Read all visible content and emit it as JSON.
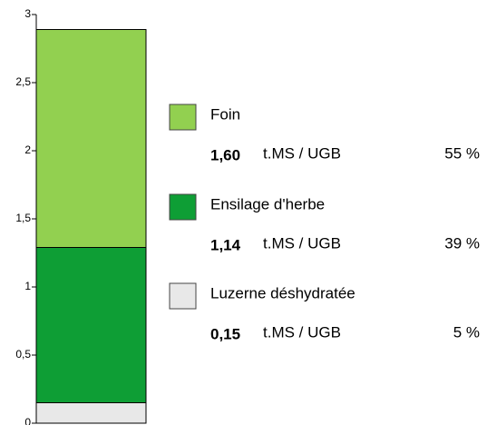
{
  "chart_data": {
    "type": "stacked_bar",
    "categories": [
      null
    ],
    "unit": "t.MS / UGB",
    "series": [
      {
        "name": "Foin",
        "color": "#92d050",
        "values": [
          1.6
        ],
        "value_labels": [
          "1,60"
        ],
        "share": [
          55
        ],
        "share_labels": [
          "55 %"
        ]
      },
      {
        "name": "Ensilage d'herbe",
        "color": "#0e9e35",
        "values": [
          1.14
        ],
        "value_labels": [
          "1,14"
        ],
        "share": [
          39
        ],
        "share_labels": [
          "39 %"
        ]
      },
      {
        "name": "Luzerne déshydratée",
        "color": "#e8e8e8",
        "values": [
          0.15
        ],
        "value_labels": [
          "0,15"
        ],
        "share": [
          5
        ],
        "share_labels": [
          "5 %"
        ]
      }
    ],
    "ylim": [
      0,
      3
    ],
    "yticks": [
      0,
      {
        "value": 0.5,
        "label": "0,5"
      },
      1,
      {
        "value": 1.5,
        "label": "1,5"
      },
      2,
      {
        "value": 2.5,
        "label": "2,5"
      },
      3
    ],
    "grid": false
  }
}
